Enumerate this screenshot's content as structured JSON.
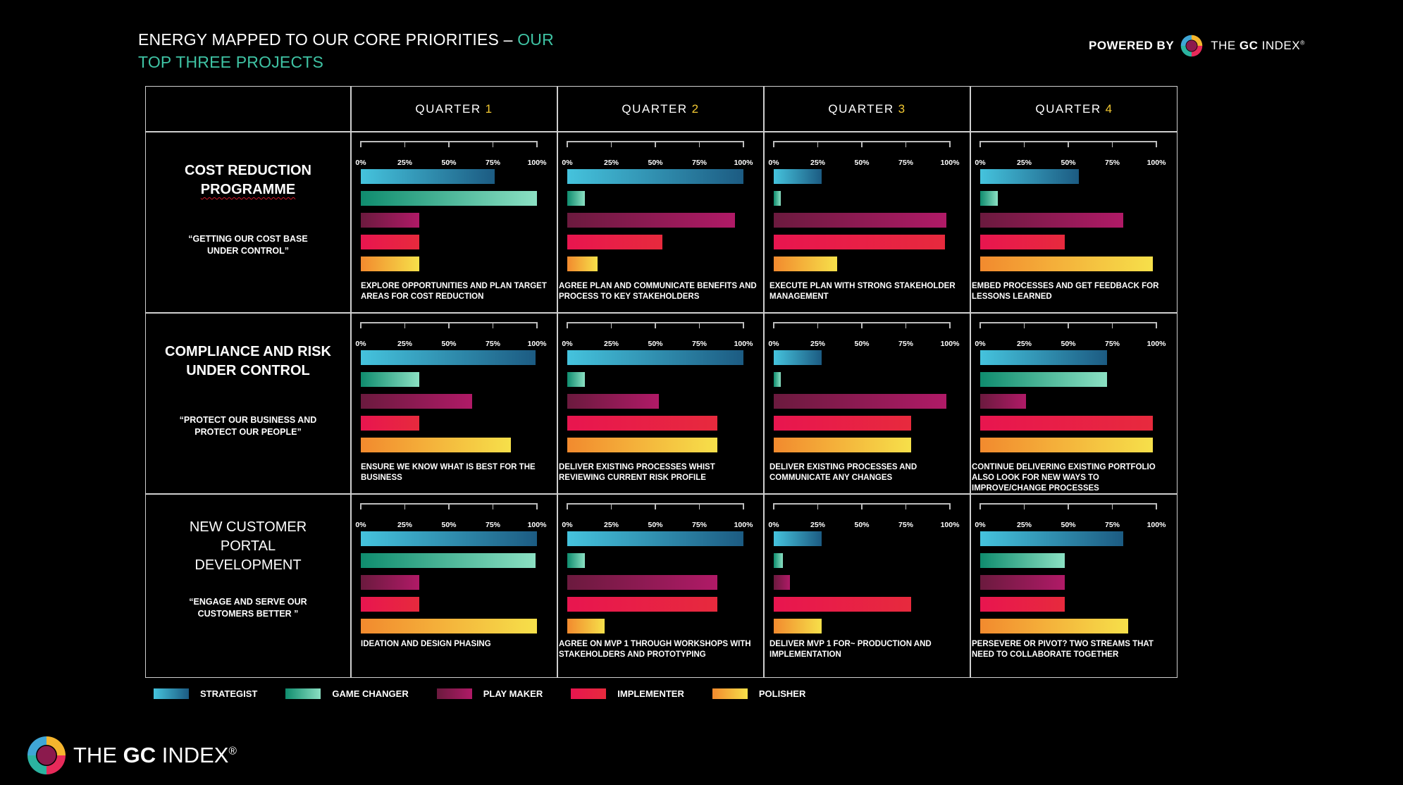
{
  "header": {
    "title_main": "ENERGY MAPPED TO OUR CORE PRIORITIES – ",
    "title_accent": "OUR TOP THREE PROJECTS",
    "powered_by": "POWERED BY",
    "brand_prefix": "THE ",
    "brand_bold": "GC",
    "brand_suffix": " INDEX",
    "registered": "®"
  },
  "footer": {
    "brand_prefix": "THE ",
    "brand_bold": "GC",
    "brand_suffix": " INDEX",
    "registered": "®"
  },
  "colors": {
    "strategist": [
      "#1c5b82",
      "#45c3dd"
    ],
    "game_changer": [
      "#0f8c6e",
      "#8be0c3"
    ],
    "play_maker": [
      "#6b1a3e",
      "#b01a67"
    ],
    "implementer": [
      "#e8154f",
      "#e72a3d"
    ],
    "polisher": [
      "#f28a2e",
      "#f6e04a"
    ],
    "title_accent": "#3fc3a4",
    "quarter_number": "#f2c832"
  },
  "chart_data": {
    "type": "bar",
    "orientation": "horizontal",
    "title": "ENERGY MAPPED TO OUR CORE PRIORITIES – OUR TOP THREE PROJECTS",
    "quarters": [
      {
        "label": "QUARTER",
        "num": "1"
      },
      {
        "label": "QUARTER",
        "num": "2"
      },
      {
        "label": "QUARTER",
        "num": "3"
      },
      {
        "label": "QUARTER",
        "num": "4"
      }
    ],
    "tick_labels": [
      "0%",
      "25%",
      "50%",
      "75%",
      "100%"
    ],
    "xlim": [
      0,
      100
    ],
    "series": [
      {
        "name": "STRATEGIST",
        "key": "strategist"
      },
      {
        "name": "GAME CHANGER",
        "key": "game_changer"
      },
      {
        "name": "PLAY MAKER",
        "key": "play_maker"
      },
      {
        "name": "IMPLEMENTER",
        "key": "implementer"
      },
      {
        "name": "POLISHER",
        "key": "polisher"
      }
    ],
    "projects": [
      {
        "name_lines": [
          "COST REDUCTION",
          "PROGRAMME"
        ],
        "quote_lines": [
          "“GETTING OUR COST BASE",
          "UNDER CONTROL”"
        ],
        "quarters": [
          {
            "values": [
              76,
              100,
              33,
              33,
              33
            ],
            "note": "EXPLORE OPPORTUNITIES AND PLAN TARGET AREAS FOR COST REDUCTION"
          },
          {
            "values": [
              100,
              10,
              95,
              54,
              17
            ],
            "note": "AGREE PLAN AND COMMUNICATE BENEFITS AND PROCESS TO KEY STAKEHOLDERS"
          },
          {
            "values": [
              27,
              4,
              98,
              97,
              36
            ],
            "note": "EXECUTE PLAN WITH STRONG STAKEHOLDER MANAGEMENT"
          },
          {
            "values": [
              56,
              10,
              81,
              48,
              98
            ],
            "note": "EMBED PROCESSES AND GET FEEDBACK FOR LESSONS LEARNED"
          }
        ]
      },
      {
        "name_lines": [
          "COMPLIANCE AND RISK",
          "UNDER CONTROL"
        ],
        "quote_lines": [
          "“PROTECT OUR BUSINESS AND",
          "PROTECT OUR PEOPLE”"
        ],
        "quarters": [
          {
            "values": [
              99,
              33,
              63,
              33,
              85
            ],
            "note": "ENSURE WE KNOW WHAT IS BEST FOR THE BUSINESS"
          },
          {
            "values": [
              100,
              10,
              52,
              85,
              85
            ],
            "note": "DELIVER EXISTING PROCESSES WHIST REVIEWING CURRENT RISK PROFILE"
          },
          {
            "values": [
              27,
              4,
              98,
              78,
              78
            ],
            "note": "DELIVER EXISTING PROCESSES AND COMMUNICATE ANY CHANGES"
          },
          {
            "values": [
              72,
              72,
              26,
              98,
              98
            ],
            "note": "CONTINUE DELIVERING EXISTING PORTFOLIO ALSO LOOK FOR NEW WAYS TO IMPROVE/CHANGE PROCESSES"
          }
        ]
      },
      {
        "name_lines": [
          "NEW CUSTOMER",
          "PORTAL",
          "DEVELOPMENT"
        ],
        "quote_lines": [
          "“ENGAGE AND SERVE OUR",
          "CUSTOMERS BETTER ”"
        ],
        "quarters": [
          {
            "values": [
              100,
              99,
              33,
              33,
              100
            ],
            "note": "IDEATION AND DESIGN PHASING"
          },
          {
            "values": [
              100,
              10,
              85,
              85,
              21
            ],
            "note": "AGREE ON MVP 1 THROUGH WORKSHOPS WITH STAKEHOLDERS AND PROTOTYPING"
          },
          {
            "values": [
              27,
              5,
              9,
              78,
              27
            ],
            "note": "DELIVER MVP 1 FOR~ PRODUCTION AND IMPLEMENTATION"
          },
          {
            "values": [
              81,
              48,
              48,
              48,
              84
            ],
            "note": "PERSEVERE OR PIVOT? TWO STREAMS THAT NEED TO COLLABORATE TOGETHER"
          }
        ]
      }
    ]
  }
}
